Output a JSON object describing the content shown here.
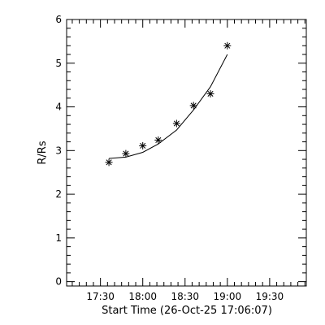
{
  "chart_data": {
    "type": "scatter",
    "xlabel": "Start Time (26-Oct-25 17:06:07)",
    "ylabel": "R/Rs",
    "xlim": [
      "17:06",
      "19:56"
    ],
    "ylim": [
      -0.1,
      6.0
    ],
    "x_ticks": [
      "17:30",
      "18:00",
      "18:30",
      "19:00",
      "19:30"
    ],
    "y_ticks": [
      0,
      1,
      2,
      3,
      4,
      5,
      6
    ],
    "grid": false,
    "series": [
      {
        "kind": "points",
        "marker": "asterisk",
        "x": [
          "17:36",
          "17:48",
          "18:00",
          "18:11",
          "18:24",
          "18:36",
          "18:48",
          "19:00"
        ],
        "y": [
          2.73,
          2.93,
          3.11,
          3.24,
          3.62,
          4.03,
          4.3,
          5.4
        ]
      },
      {
        "kind": "line",
        "x": [
          "17:36",
          "17:48",
          "18:00",
          "18:11",
          "18:24",
          "18:36",
          "18:48",
          "19:00"
        ],
        "y": [
          2.82,
          2.85,
          2.96,
          3.15,
          3.47,
          3.93,
          4.46,
          5.2
        ]
      }
    ]
  }
}
